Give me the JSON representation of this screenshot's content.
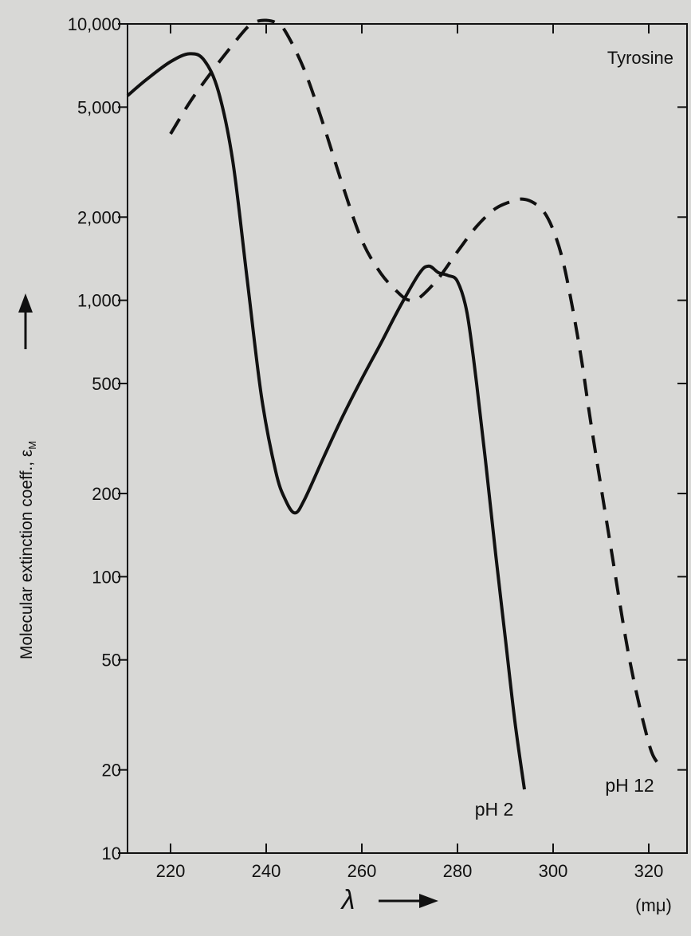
{
  "chart_data": {
    "type": "line",
    "title": "Tyrosine",
    "xlabel": "λ",
    "xunit": "(mμ)",
    "ylabel": "Molecular extinction coeff., ε",
    "ylabel_sub": "M",
    "xlim": [
      211,
      328
    ],
    "ylim": [
      10,
      10000
    ],
    "yscale": "log",
    "x_ticks": [
      220,
      240,
      260,
      280,
      300,
      320
    ],
    "x_tick_labels": [
      "220",
      "240",
      "260",
      "280",
      "300",
      "320"
    ],
    "y_ticks": [
      10,
      20,
      50,
      100,
      200,
      500,
      1000,
      2000,
      5000,
      10000
    ],
    "y_tick_labels": [
      "10",
      "20",
      "50",
      "100",
      "200",
      "500",
      "1,000",
      "2,000",
      "5,000",
      "10,000"
    ],
    "grid": false,
    "series": [
      {
        "name": "pH 2",
        "style": "solid",
        "color": "#111111",
        "x": [
          211,
          215,
          220,
          224,
          227,
          230,
          233,
          236,
          239,
          242,
          244,
          246,
          248,
          252,
          256,
          260,
          264,
          268,
          272,
          274,
          276,
          278,
          280,
          282,
          284,
          286,
          288,
          290,
          292,
          294
        ],
        "y": [
          5500,
          6300,
          7300,
          7800,
          7400,
          5700,
          3200,
          1200,
          450,
          240,
          190,
          170,
          190,
          270,
          380,
          520,
          700,
          950,
          1250,
          1330,
          1260,
          1230,
          1170,
          900,
          500,
          250,
          120,
          60,
          30,
          17
        ]
      },
      {
        "name": "pH 12",
        "style": "dashed",
        "color": "#111111",
        "x": [
          220,
          224,
          228,
          232,
          236,
          238,
          240,
          242,
          244,
          248,
          252,
          256,
          260,
          264,
          268,
          270,
          272,
          276,
          280,
          284,
          288,
          292,
          294,
          296,
          298,
          300,
          302,
          304,
          306,
          308,
          312,
          316,
          320,
          322
        ],
        "y": [
          4000,
          5200,
          6500,
          8000,
          9700,
          10200,
          10300,
          10100,
          9400,
          6800,
          4300,
          2600,
          1650,
          1250,
          1050,
          1000,
          1020,
          1200,
          1500,
          1850,
          2150,
          2300,
          2320,
          2250,
          2100,
          1800,
          1400,
          950,
          600,
          350,
          130,
          50,
          25,
          21
        ]
      }
    ],
    "annotations": [
      "pH 2",
      "pH 12"
    ]
  }
}
